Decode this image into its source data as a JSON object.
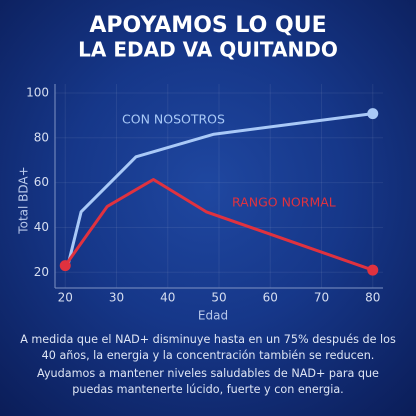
{
  "chart_data": {
    "type": "line",
    "title": "APOYAMOS LO QUE",
    "subtitle": "LA EDAD VA QUITANDO",
    "x_label": "Edad",
    "y_label": "Total BDA+",
    "xlim": [
      18,
      82
    ],
    "xticks": [
      20,
      30,
      40,
      50,
      60,
      70,
      80
    ],
    "ylim": [
      13,
      104
    ],
    "yticks": [
      20,
      40,
      60,
      80,
      100
    ],
    "grid": true,
    "series": [
      {
        "name": "CON NOSOTROS",
        "color": "#a9c9f7",
        "x": [
          20.4,
          23.1,
          33.8,
          49,
          80
        ],
        "values": [
          22,
          47,
          71.5,
          81.6,
          90.8
        ]
      },
      {
        "name": "RANGO NORMAL",
        "color": "#e0323f",
        "x": [
          20,
          28.2,
          37.2,
          47.5,
          80
        ],
        "values": [
          23,
          49.4,
          61.4,
          47,
          21
        ]
      }
    ],
    "notes": [
      "A medida que el NAD+ disminuye hasta en un 75% después de los 40 años, la energia y la concentración también se reducen.",
      "Ayudamos a mantener niveles saludables de NAD+ para que puedas mantenerte lúcido, fuerte y con energia."
    ]
  }
}
